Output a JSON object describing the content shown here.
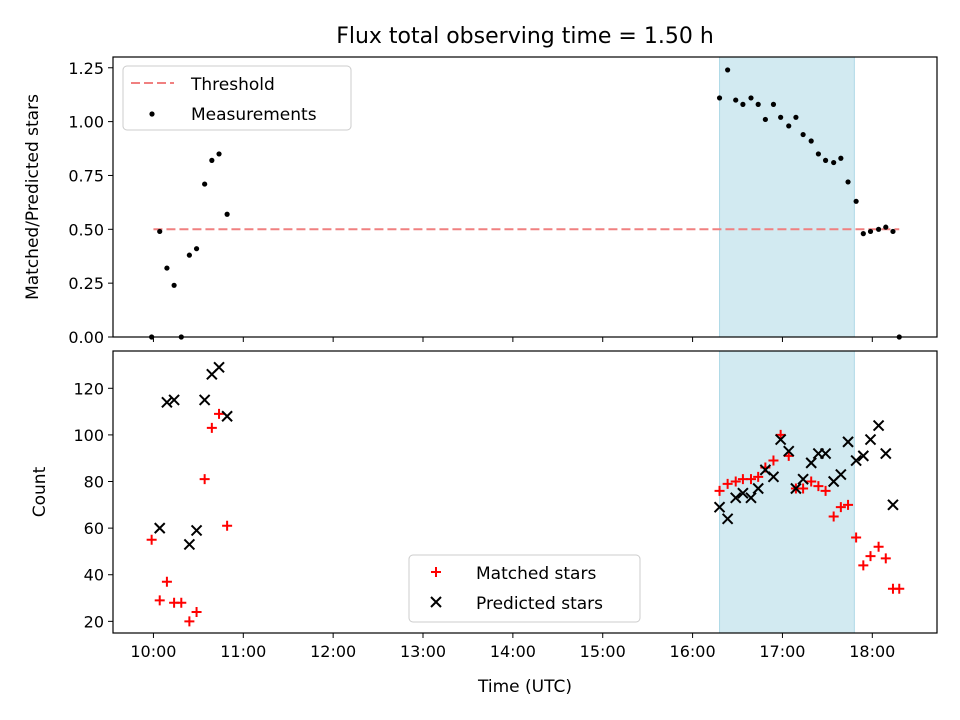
{
  "figure": {
    "title": "Flux total observing time = 1.50 h"
  },
  "colors": {
    "threshold": "#f08080",
    "measurement": "#000000",
    "matched": "#ff0000",
    "predicted": "#000000",
    "span": "#add8e6"
  },
  "chart_data": [
    {
      "type": "scatter",
      "ylabel": "Matched/Predicted stars",
      "xlim_hours": [
        9.55,
        18.72
      ],
      "ylim": [
        0,
        1.3
      ],
      "yticks": [
        0,
        0.25,
        0.5,
        0.75,
        1.0,
        1.25
      ],
      "ytick_labels": [
        "0.00",
        "0.25",
        "0.50",
        "0.75",
        "1.00",
        "1.25"
      ],
      "legend_position": "upper-left",
      "shaded_span_hours": [
        16.3,
        17.8
      ],
      "threshold": {
        "name": "Threshold",
        "y": 0.5,
        "x_hours": [
          10.0,
          18.3
        ]
      },
      "series": [
        {
          "name": "Measurements",
          "points": [
            [
              9.98,
              0.0
            ],
            [
              10.07,
              0.49
            ],
            [
              10.15,
              0.32
            ],
            [
              10.23,
              0.24
            ],
            [
              10.31,
              0.0
            ],
            [
              10.4,
              0.38
            ],
            [
              10.48,
              0.41
            ],
            [
              10.57,
              0.71
            ],
            [
              10.65,
              0.82
            ],
            [
              10.73,
              0.85
            ],
            [
              10.82,
              0.57
            ],
            [
              16.3,
              1.11
            ],
            [
              16.39,
              1.24
            ],
            [
              16.48,
              1.1
            ],
            [
              16.56,
              1.08
            ],
            [
              16.65,
              1.11
            ],
            [
              16.73,
              1.08
            ],
            [
              16.81,
              1.01
            ],
            [
              16.9,
              1.08
            ],
            [
              16.98,
              1.02
            ],
            [
              17.07,
              0.98
            ],
            [
              17.15,
              1.02
            ],
            [
              17.23,
              0.94
            ],
            [
              17.32,
              0.91
            ],
            [
              17.4,
              0.85
            ],
            [
              17.48,
              0.82
            ],
            [
              17.57,
              0.81
            ],
            [
              17.65,
              0.83
            ],
            [
              17.73,
              0.72
            ],
            [
              17.82,
              0.63
            ],
            [
              17.9,
              0.48
            ],
            [
              17.98,
              0.49
            ],
            [
              18.07,
              0.5
            ],
            [
              18.15,
              0.51
            ],
            [
              18.23,
              0.49
            ],
            [
              18.3,
              0.0
            ]
          ]
        }
      ]
    },
    {
      "type": "scatter",
      "xlabel": "Time (UTC)",
      "ylabel": "Count",
      "xlim_hours": [
        9.55,
        18.72
      ],
      "ylim": [
        15,
        136
      ],
      "yticks": [
        20,
        40,
        60,
        80,
        100,
        120
      ],
      "xticks_hours": [
        10,
        11,
        12,
        13,
        14,
        15,
        16,
        17,
        18
      ],
      "xtick_labels": [
        "10:00",
        "11:00",
        "12:00",
        "13:00",
        "14:00",
        "15:00",
        "16:00",
        "17:00",
        "18:00"
      ],
      "legend_position": "lower-center",
      "shaded_span_hours": [
        16.3,
        17.8
      ],
      "series": [
        {
          "name": "Matched stars",
          "marker": "plus",
          "points": [
            [
              9.98,
              55
            ],
            [
              10.07,
              29
            ],
            [
              10.15,
              37
            ],
            [
              10.23,
              28
            ],
            [
              10.31,
              28
            ],
            [
              10.4,
              20
            ],
            [
              10.48,
              24
            ],
            [
              10.57,
              81
            ],
            [
              10.65,
              103
            ],
            [
              10.73,
              109
            ],
            [
              10.82,
              61
            ],
            [
              16.3,
              76
            ],
            [
              16.39,
              79
            ],
            [
              16.48,
              80
            ],
            [
              16.56,
              81
            ],
            [
              16.65,
              81
            ],
            [
              16.73,
              82
            ],
            [
              16.81,
              86
            ],
            [
              16.9,
              89
            ],
            [
              16.98,
              100
            ],
            [
              17.07,
              91
            ],
            [
              17.15,
              77
            ],
            [
              17.23,
              77
            ],
            [
              17.32,
              80
            ],
            [
              17.4,
              78
            ],
            [
              17.48,
              76
            ],
            [
              17.57,
              65
            ],
            [
              17.65,
              69
            ],
            [
              17.73,
              70
            ],
            [
              17.82,
              56
            ],
            [
              17.9,
              44
            ],
            [
              17.98,
              48
            ],
            [
              18.07,
              52
            ],
            [
              18.15,
              47
            ],
            [
              18.23,
              34
            ],
            [
              18.3,
              34
            ]
          ]
        },
        {
          "name": "Predicted stars",
          "marker": "cross",
          "points": [
            [
              10.07,
              60
            ],
            [
              10.15,
              114
            ],
            [
              10.23,
              115
            ],
            [
              10.4,
              53
            ],
            [
              10.48,
              59
            ],
            [
              10.57,
              115
            ],
            [
              10.65,
              126
            ],
            [
              10.73,
              129
            ],
            [
              10.82,
              108
            ],
            [
              16.3,
              69
            ],
            [
              16.39,
              64
            ],
            [
              16.48,
              73
            ],
            [
              16.56,
              75
            ],
            [
              16.65,
              73
            ],
            [
              16.73,
              77
            ],
            [
              16.81,
              85
            ],
            [
              16.9,
              82
            ],
            [
              16.98,
              98
            ],
            [
              17.07,
              93
            ],
            [
              17.15,
              77
            ],
            [
              17.23,
              81
            ],
            [
              17.32,
              88
            ],
            [
              17.4,
              92
            ],
            [
              17.48,
              92
            ],
            [
              17.57,
              80
            ],
            [
              17.65,
              83
            ],
            [
              17.73,
              97
            ],
            [
              17.82,
              89
            ],
            [
              17.9,
              91
            ],
            [
              17.98,
              98
            ],
            [
              18.07,
              104
            ],
            [
              18.15,
              92
            ],
            [
              18.23,
              70
            ]
          ]
        }
      ]
    }
  ]
}
